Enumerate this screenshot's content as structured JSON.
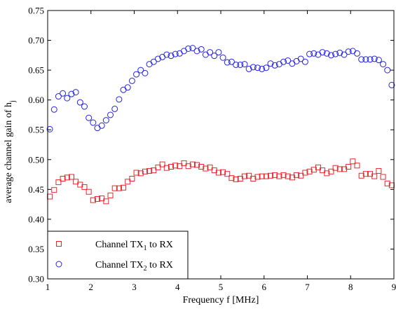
{
  "chart_data": {
    "type": "scatter",
    "xlabel": "Frequency f [MHz]",
    "ylabel": "average channel gain of h",
    "ylabel_subscript": "j",
    "xlim": [
      1,
      9
    ],
    "ylim": [
      0.3,
      0.75
    ],
    "xticks": [
      1,
      2,
      3,
      4,
      5,
      6,
      7,
      8,
      9
    ],
    "yticks": [
      0.3,
      0.35,
      0.4,
      0.45,
      0.5,
      0.55,
      0.6,
      0.65,
      0.7,
      0.75
    ],
    "ytick_labels": [
      "0.30",
      "0.35",
      "0.40",
      "0.45",
      "0.50",
      "0.55",
      "0.60",
      "0.65",
      "0.70",
      "0.75"
    ],
    "grid": false,
    "legend_position": "bottom-left",
    "x": [
      1.05,
      1.15,
      1.25,
      1.35,
      1.45,
      1.55,
      1.65,
      1.75,
      1.85,
      1.95,
      2.05,
      2.15,
      2.25,
      2.35,
      2.45,
      2.55,
      2.65,
      2.75,
      2.85,
      2.95,
      3.05,
      3.15,
      3.25,
      3.35,
      3.45,
      3.55,
      3.65,
      3.75,
      3.85,
      3.95,
      4.05,
      4.15,
      4.25,
      4.35,
      4.45,
      4.55,
      4.65,
      4.75,
      4.85,
      4.95,
      5.05,
      5.15,
      5.25,
      5.35,
      5.45,
      5.55,
      5.65,
      5.75,
      5.85,
      5.95,
      6.05,
      6.15,
      6.25,
      6.35,
      6.45,
      6.55,
      6.65,
      6.75,
      6.85,
      6.95,
      7.05,
      7.15,
      7.25,
      7.35,
      7.45,
      7.55,
      7.65,
      7.75,
      7.85,
      7.95,
      8.05,
      8.15,
      8.25,
      8.35,
      8.45,
      8.55,
      8.65,
      8.75,
      8.85,
      8.95
    ],
    "series": [
      {
        "name": "Channel TX",
        "name_sub": "1",
        "name_suffix": " to RX",
        "marker": "square",
        "color": "#e8262b",
        "values": [
          0.438,
          0.449,
          0.462,
          0.468,
          0.47,
          0.471,
          0.463,
          0.458,
          0.454,
          0.446,
          0.432,
          0.434,
          0.435,
          0.43,
          0.44,
          0.452,
          0.452,
          0.453,
          0.463,
          0.468,
          0.478,
          0.477,
          0.48,
          0.481,
          0.482,
          0.487,
          0.492,
          0.486,
          0.488,
          0.49,
          0.489,
          0.494,
          0.489,
          0.492,
          0.491,
          0.488,
          0.485,
          0.487,
          0.482,
          0.478,
          0.479,
          0.476,
          0.469,
          0.467,
          0.468,
          0.472,
          0.473,
          0.468,
          0.471,
          0.472,
          0.472,
          0.473,
          0.474,
          0.472,
          0.474,
          0.472,
          0.47,
          0.474,
          0.473,
          0.478,
          0.48,
          0.483,
          0.487,
          0.482,
          0.477,
          0.48,
          0.486,
          0.484,
          0.484,
          0.488,
          0.497,
          0.49,
          0.473,
          0.476,
          0.476,
          0.472,
          0.481,
          0.471,
          0.46,
          0.457
        ]
      },
      {
        "name": "Channel TX",
        "name_sub": "2",
        "name_suffix": " to RX",
        "marker": "circle",
        "color": "#2323e8",
        "values": [
          0.551,
          0.584,
          0.606,
          0.611,
          0.603,
          0.61,
          0.613,
          0.596,
          0.589,
          0.57,
          0.562,
          0.553,
          0.557,
          0.566,
          0.575,
          0.585,
          0.601,
          0.617,
          0.621,
          0.632,
          0.643,
          0.65,
          0.645,
          0.66,
          0.664,
          0.669,
          0.672,
          0.676,
          0.674,
          0.677,
          0.678,
          0.682,
          0.686,
          0.687,
          0.682,
          0.685,
          0.676,
          0.68,
          0.674,
          0.68,
          0.671,
          0.663,
          0.664,
          0.659,
          0.659,
          0.66,
          0.652,
          0.655,
          0.654,
          0.652,
          0.654,
          0.661,
          0.658,
          0.66,
          0.664,
          0.666,
          0.661,
          0.665,
          0.669,
          0.664,
          0.677,
          0.678,
          0.676,
          0.68,
          0.678,
          0.675,
          0.677,
          0.679,
          0.676,
          0.681,
          0.682,
          0.678,
          0.668,
          0.668,
          0.668,
          0.669,
          0.667,
          0.66,
          0.65,
          0.625
        ]
      }
    ]
  }
}
